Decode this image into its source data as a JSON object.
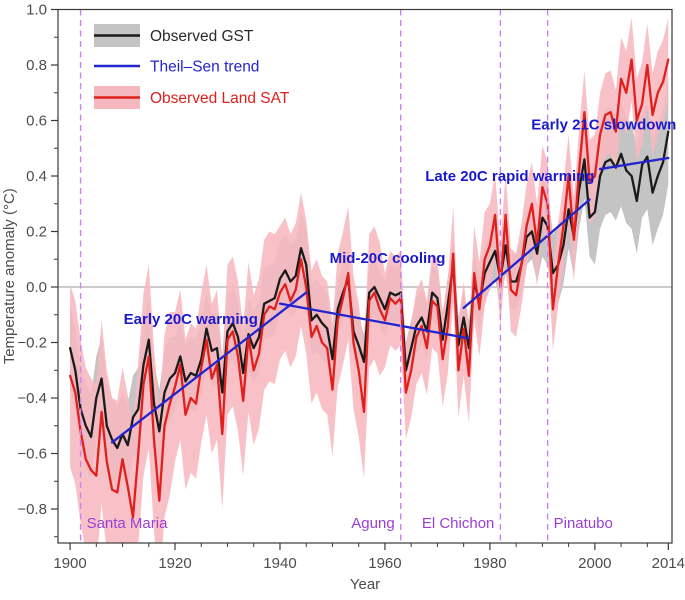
{
  "figure": {
    "background": "#ffffff",
    "frame_color": "#3a3a3a",
    "zero_line_color": "#999999",
    "y_axis": {
      "label": "Temperature anomaly (°C)",
      "range": [
        -0.9225,
        1.0
      ],
      "tick_values": [
        1.0,
        0.8,
        0.6,
        0.4,
        0.2,
        0.0,
        -0.2,
        -0.4,
        -0.6,
        -0.8
      ],
      "tick_labels": [
        "1.0",
        "0.8",
        "0.6",
        "0.4",
        "0.2",
        "0.0",
        "−0.2",
        "−0.4",
        "−0.6",
        "−0.8"
      ],
      "minor_step": 0.1
    },
    "x_axis": {
      "label": "Year",
      "range": [
        1897.7,
        2014.7
      ],
      "tick_values": [
        1900,
        1920,
        1940,
        1960,
        1980,
        2000,
        2014
      ],
      "tick_labels": [
        "1900",
        "1920",
        "1940",
        "1960",
        "1980",
        "2000",
        "2014"
      ],
      "minor_step": 5
    },
    "legend": {
      "items": [
        {
          "label": "Observed GST",
          "line_color": "#1a1a1a",
          "band_color": "#c4c4c4",
          "text_color": "#2a2a2a"
        },
        {
          "label": "Theil–Sen trend",
          "line_color": "#2424cf",
          "band_color": null,
          "text_color": "#2424cf"
        },
        {
          "label": "Observed Land SAT",
          "line_color": "#e0201d",
          "band_color": "#f6b8bf",
          "text_color": "#e0201d"
        }
      ]
    }
  },
  "chart_data": {
    "type": "line",
    "title": "",
    "xlabel": "Year",
    "ylabel": "Temperature anomaly (°C)",
    "xlim": [
      1897.7,
      2014.7
    ],
    "ylim": [
      -0.9225,
      1.0
    ],
    "grid": false,
    "legend_position": "top-left",
    "x": [
      1900,
      1901,
      1902,
      1903,
      1904,
      1905,
      1906,
      1907,
      1908,
      1909,
      1910,
      1911,
      1912,
      1913,
      1914,
      1915,
      1916,
      1917,
      1918,
      1919,
      1920,
      1921,
      1922,
      1923,
      1924,
      1925,
      1926,
      1927,
      1928,
      1929,
      1930,
      1931,
      1932,
      1933,
      1934,
      1935,
      1936,
      1937,
      1938,
      1939,
      1940,
      1941,
      1942,
      1943,
      1944,
      1945,
      1946,
      1947,
      1948,
      1949,
      1950,
      1951,
      1952,
      1953,
      1954,
      1955,
      1956,
      1957,
      1958,
      1959,
      1960,
      1961,
      1962,
      1963,
      1964,
      1965,
      1966,
      1967,
      1968,
      1969,
      1970,
      1971,
      1972,
      1973,
      1974,
      1975,
      1976,
      1977,
      1978,
      1979,
      1980,
      1981,
      1982,
      1983,
      1984,
      1985,
      1986,
      1987,
      1988,
      1989,
      1990,
      1991,
      1992,
      1993,
      1994,
      1995,
      1996,
      1997,
      1998,
      1999,
      2000,
      2001,
      2002,
      2003,
      2004,
      2005,
      2006,
      2007,
      2008,
      2009,
      2010,
      2011,
      2012,
      2013,
      2014
    ],
    "series": [
      {
        "name": "Observed GST",
        "color": "#1a1a1a",
        "band_color": "#c4c4c4",
        "values": [
          -0.22,
          -0.3,
          -0.44,
          -0.5,
          -0.54,
          -0.4,
          -0.33,
          -0.5,
          -0.55,
          -0.58,
          -0.53,
          -0.57,
          -0.47,
          -0.44,
          -0.28,
          -0.19,
          -0.42,
          -0.52,
          -0.38,
          -0.33,
          -0.31,
          -0.25,
          -0.34,
          -0.31,
          -0.32,
          -0.26,
          -0.15,
          -0.23,
          -0.22,
          -0.38,
          -0.16,
          -0.13,
          -0.18,
          -0.31,
          -0.17,
          -0.22,
          -0.18,
          -0.06,
          -0.05,
          -0.04,
          0.03,
          0.06,
          0.02,
          0.04,
          0.14,
          0.08,
          -0.12,
          -0.1,
          -0.13,
          -0.15,
          -0.26,
          -0.08,
          -0.02,
          0.03,
          -0.16,
          -0.21,
          -0.27,
          -0.02,
          0.0,
          -0.04,
          -0.08,
          -0.02,
          -0.03,
          -0.02,
          -0.3,
          -0.22,
          -0.14,
          -0.11,
          -0.16,
          -0.02,
          -0.04,
          -0.19,
          -0.06,
          0.08,
          -0.21,
          -0.11,
          -0.22,
          0.02,
          -0.06,
          0.05,
          0.09,
          0.13,
          0.03,
          0.15,
          0.02,
          0.02,
          0.08,
          0.18,
          0.2,
          0.12,
          0.25,
          0.22,
          0.05,
          0.08,
          0.15,
          0.28,
          0.18,
          0.35,
          0.46,
          0.25,
          0.27,
          0.4,
          0.45,
          0.46,
          0.43,
          0.48,
          0.42,
          0.4,
          0.31,
          0.44,
          0.47,
          0.34,
          0.4,
          0.45,
          0.56
        ],
        "band_halfwidth": [
          0.15,
          0.15,
          0.15,
          0.15,
          0.15,
          0.15,
          0.15,
          0.15,
          0.15,
          0.15,
          0.15,
          0.15,
          0.15,
          0.15,
          0.15,
          0.15,
          0.15,
          0.15,
          0.15,
          0.15,
          0.13,
          0.13,
          0.13,
          0.13,
          0.13,
          0.13,
          0.13,
          0.13,
          0.13,
          0.13,
          0.13,
          0.13,
          0.13,
          0.13,
          0.13,
          0.13,
          0.13,
          0.13,
          0.13,
          0.13,
          0.13,
          0.13,
          0.13,
          0.13,
          0.13,
          0.13,
          0.13,
          0.13,
          0.13,
          0.13,
          0.1,
          0.1,
          0.1,
          0.1,
          0.1,
          0.1,
          0.1,
          0.1,
          0.1,
          0.1,
          0.1,
          0.1,
          0.1,
          0.1,
          0.1,
          0.1,
          0.1,
          0.1,
          0.1,
          0.1,
          0.1,
          0.1,
          0.1,
          0.1,
          0.1,
          0.1,
          0.1,
          0.1,
          0.1,
          0.1,
          0.1,
          0.1,
          0.1,
          0.1,
          0.1,
          0.1,
          0.1,
          0.1,
          0.1,
          0.1,
          0.14,
          0.14,
          0.14,
          0.14,
          0.14,
          0.14,
          0.14,
          0.14,
          0.14,
          0.14,
          0.19,
          0.19,
          0.19,
          0.19,
          0.19,
          0.19,
          0.19,
          0.19,
          0.19,
          0.19,
          0.19,
          0.19,
          0.19,
          0.19,
          0.19
        ]
      },
      {
        "name": "Observed Land SAT",
        "color": "#e0201d",
        "band_color": "#f6b8bf",
        "values": [
          -0.32,
          -0.38,
          -0.52,
          -0.62,
          -0.66,
          -0.68,
          -0.45,
          -0.63,
          -0.73,
          -0.74,
          -0.62,
          -0.72,
          -0.83,
          -0.6,
          -0.35,
          -0.25,
          -0.55,
          -0.77,
          -0.5,
          -0.42,
          -0.36,
          -0.28,
          -0.46,
          -0.4,
          -0.42,
          -0.29,
          -0.19,
          -0.33,
          -0.28,
          -0.53,
          -0.19,
          -0.16,
          -0.25,
          -0.41,
          -0.18,
          -0.3,
          -0.24,
          -0.1,
          -0.07,
          -0.08,
          -0.02,
          0.01,
          -0.05,
          -0.01,
          0.1,
          0.0,
          -0.18,
          -0.14,
          -0.2,
          -0.22,
          -0.37,
          -0.12,
          -0.04,
          0.05,
          -0.2,
          -0.3,
          -0.45,
          -0.05,
          -0.02,
          -0.08,
          -0.12,
          -0.04,
          -0.06,
          -0.04,
          -0.38,
          -0.3,
          -0.18,
          -0.14,
          -0.22,
          -0.05,
          -0.07,
          -0.26,
          -0.14,
          0.12,
          -0.3,
          -0.15,
          -0.32,
          0.05,
          -0.08,
          0.1,
          0.15,
          0.26,
          0.0,
          0.26,
          -0.01,
          -0.03,
          0.08,
          0.22,
          0.3,
          0.15,
          0.36,
          0.3,
          -0.08,
          0.08,
          0.22,
          0.4,
          0.17,
          0.42,
          0.63,
          0.38,
          0.4,
          0.55,
          0.62,
          0.63,
          0.56,
          0.75,
          0.7,
          0.82,
          0.6,
          0.66,
          0.8,
          0.62,
          0.7,
          0.74,
          0.82
        ],
        "band_halfwidth": [
          0.33,
          0.33,
          0.33,
          0.33,
          0.33,
          0.33,
          0.33,
          0.33,
          0.33,
          0.33,
          0.33,
          0.33,
          0.33,
          0.33,
          0.33,
          0.33,
          0.33,
          0.33,
          0.33,
          0.33,
          0.27,
          0.27,
          0.27,
          0.27,
          0.27,
          0.27,
          0.27,
          0.27,
          0.27,
          0.27,
          0.27,
          0.27,
          0.27,
          0.27,
          0.27,
          0.27,
          0.27,
          0.27,
          0.27,
          0.27,
          0.24,
          0.24,
          0.24,
          0.24,
          0.24,
          0.24,
          0.24,
          0.24,
          0.24,
          0.24,
          0.24,
          0.24,
          0.24,
          0.24,
          0.24,
          0.24,
          0.24,
          0.24,
          0.24,
          0.24,
          0.17,
          0.17,
          0.17,
          0.17,
          0.17,
          0.17,
          0.17,
          0.17,
          0.17,
          0.17,
          0.17,
          0.17,
          0.17,
          0.17,
          0.17,
          0.17,
          0.17,
          0.17,
          0.17,
          0.17,
          0.15,
          0.15,
          0.15,
          0.15,
          0.15,
          0.15,
          0.15,
          0.15,
          0.15,
          0.15,
          0.15,
          0.15,
          0.15,
          0.15,
          0.15,
          0.15,
          0.15,
          0.15,
          0.15,
          0.15,
          0.15,
          0.15,
          0.15,
          0.15,
          0.15,
          0.15,
          0.15,
          0.15,
          0.15,
          0.15,
          0.15,
          0.15,
          0.15,
          0.15,
          0.15
        ]
      }
    ],
    "trend": {
      "name": "Theil–Sen trend",
      "color": "#2424cf",
      "segments": [
        {
          "x1": 1908,
          "y1": -0.56,
          "x2": 1945,
          "y2": -0.02
        },
        {
          "x1": 1940,
          "y1": -0.06,
          "x2": 1976,
          "y2": -0.185
        },
        {
          "x1": 1975,
          "y1": -0.075,
          "x2": 1999,
          "y2": 0.315
        },
        {
          "x1": 2001,
          "y1": 0.425,
          "x2": 2014,
          "y2": 0.465
        }
      ]
    },
    "annotations": [
      {
        "text": "Early 20C warming",
        "year": 1923,
        "value": -0.115,
        "color": "#1a1acc"
      },
      {
        "text": "Mid-20C cooling",
        "year": 1960.5,
        "value": 0.105,
        "color": "#1a1acc"
      },
      {
        "text": "Late 20C rapid warming",
        "year": 1983.8,
        "value": 0.4,
        "color": "#1a1acc"
      },
      {
        "text": "Early 21C slowdown",
        "year": 2001.7,
        "value": 0.585,
        "color": "#1a1acc"
      }
    ],
    "eruptions": [
      {
        "name": "Santa Maria",
        "year": 1902,
        "label_side": "right",
        "line_color": "#cd82f2",
        "text_color": "#9a3fd4"
      },
      {
        "name": "Agung",
        "year": 1963,
        "label_side": "left",
        "line_color": "#cd82f2",
        "text_color": "#9a3fd4"
      },
      {
        "name": "El Chichon",
        "year": 1982,
        "label_side": "left",
        "line_color": "#cd82f2",
        "text_color": "#9a3fd4"
      },
      {
        "name": "Pinatubo",
        "year": 1991,
        "label_side": "right",
        "line_color": "#cd82f2",
        "text_color": "#9a3fd4"
      }
    ],
    "zero_line": true
  }
}
